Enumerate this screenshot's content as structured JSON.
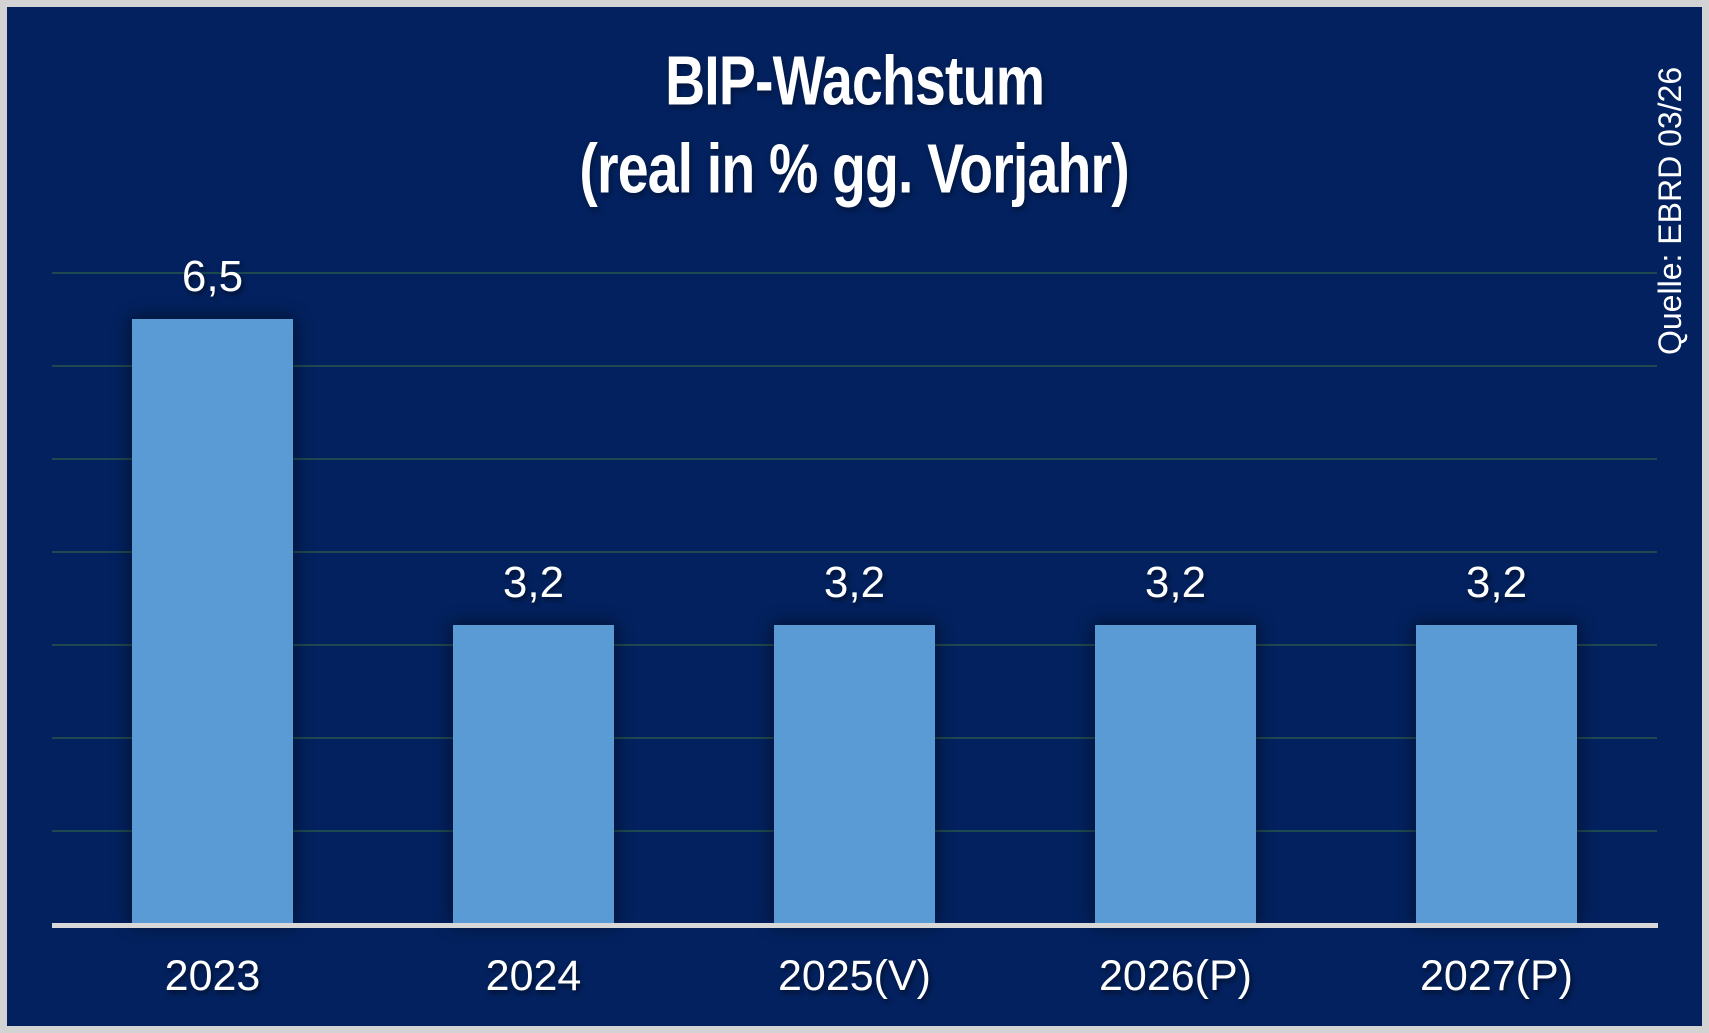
{
  "title": {
    "line1": "BIP-Wachstum",
    "line2": "(real in % gg. Vorjahr)"
  },
  "source": {
    "text": "Quelle: EBRD 03/26"
  },
  "chart_data": {
    "type": "bar",
    "title": "BIP-Wachstum",
    "subtitle": "(real in % gg. Vorjahr)",
    "categories": [
      "2023",
      "2024",
      "2025(V)",
      "2026(P)",
      "2027(P)"
    ],
    "values": [
      6.5,
      3.2,
      3.2,
      3.2,
      3.2
    ],
    "display_values": [
      "6,5",
      "3,2",
      "3,2",
      "3,2",
      "3,2"
    ],
    "series_name": "BIP-Wachstum real in % gegen Vorjahr",
    "source": "Quelle: EBRD 03/26",
    "ylabel": "",
    "xlabel": "",
    "ylim": [
      0,
      7
    ],
    "gridlines": "horizontal every 1 unit from 1 to 7, no y tick labels",
    "legend": "none",
    "value_labels_position": "above bars"
  },
  "colors": {
    "background": "#03215E",
    "bar": "#5B9BD5",
    "axis_line": "#D8D8D8",
    "gridline": "#2C604A",
    "frame_border": "#D3D3D3",
    "text": "#FFFFFF"
  }
}
